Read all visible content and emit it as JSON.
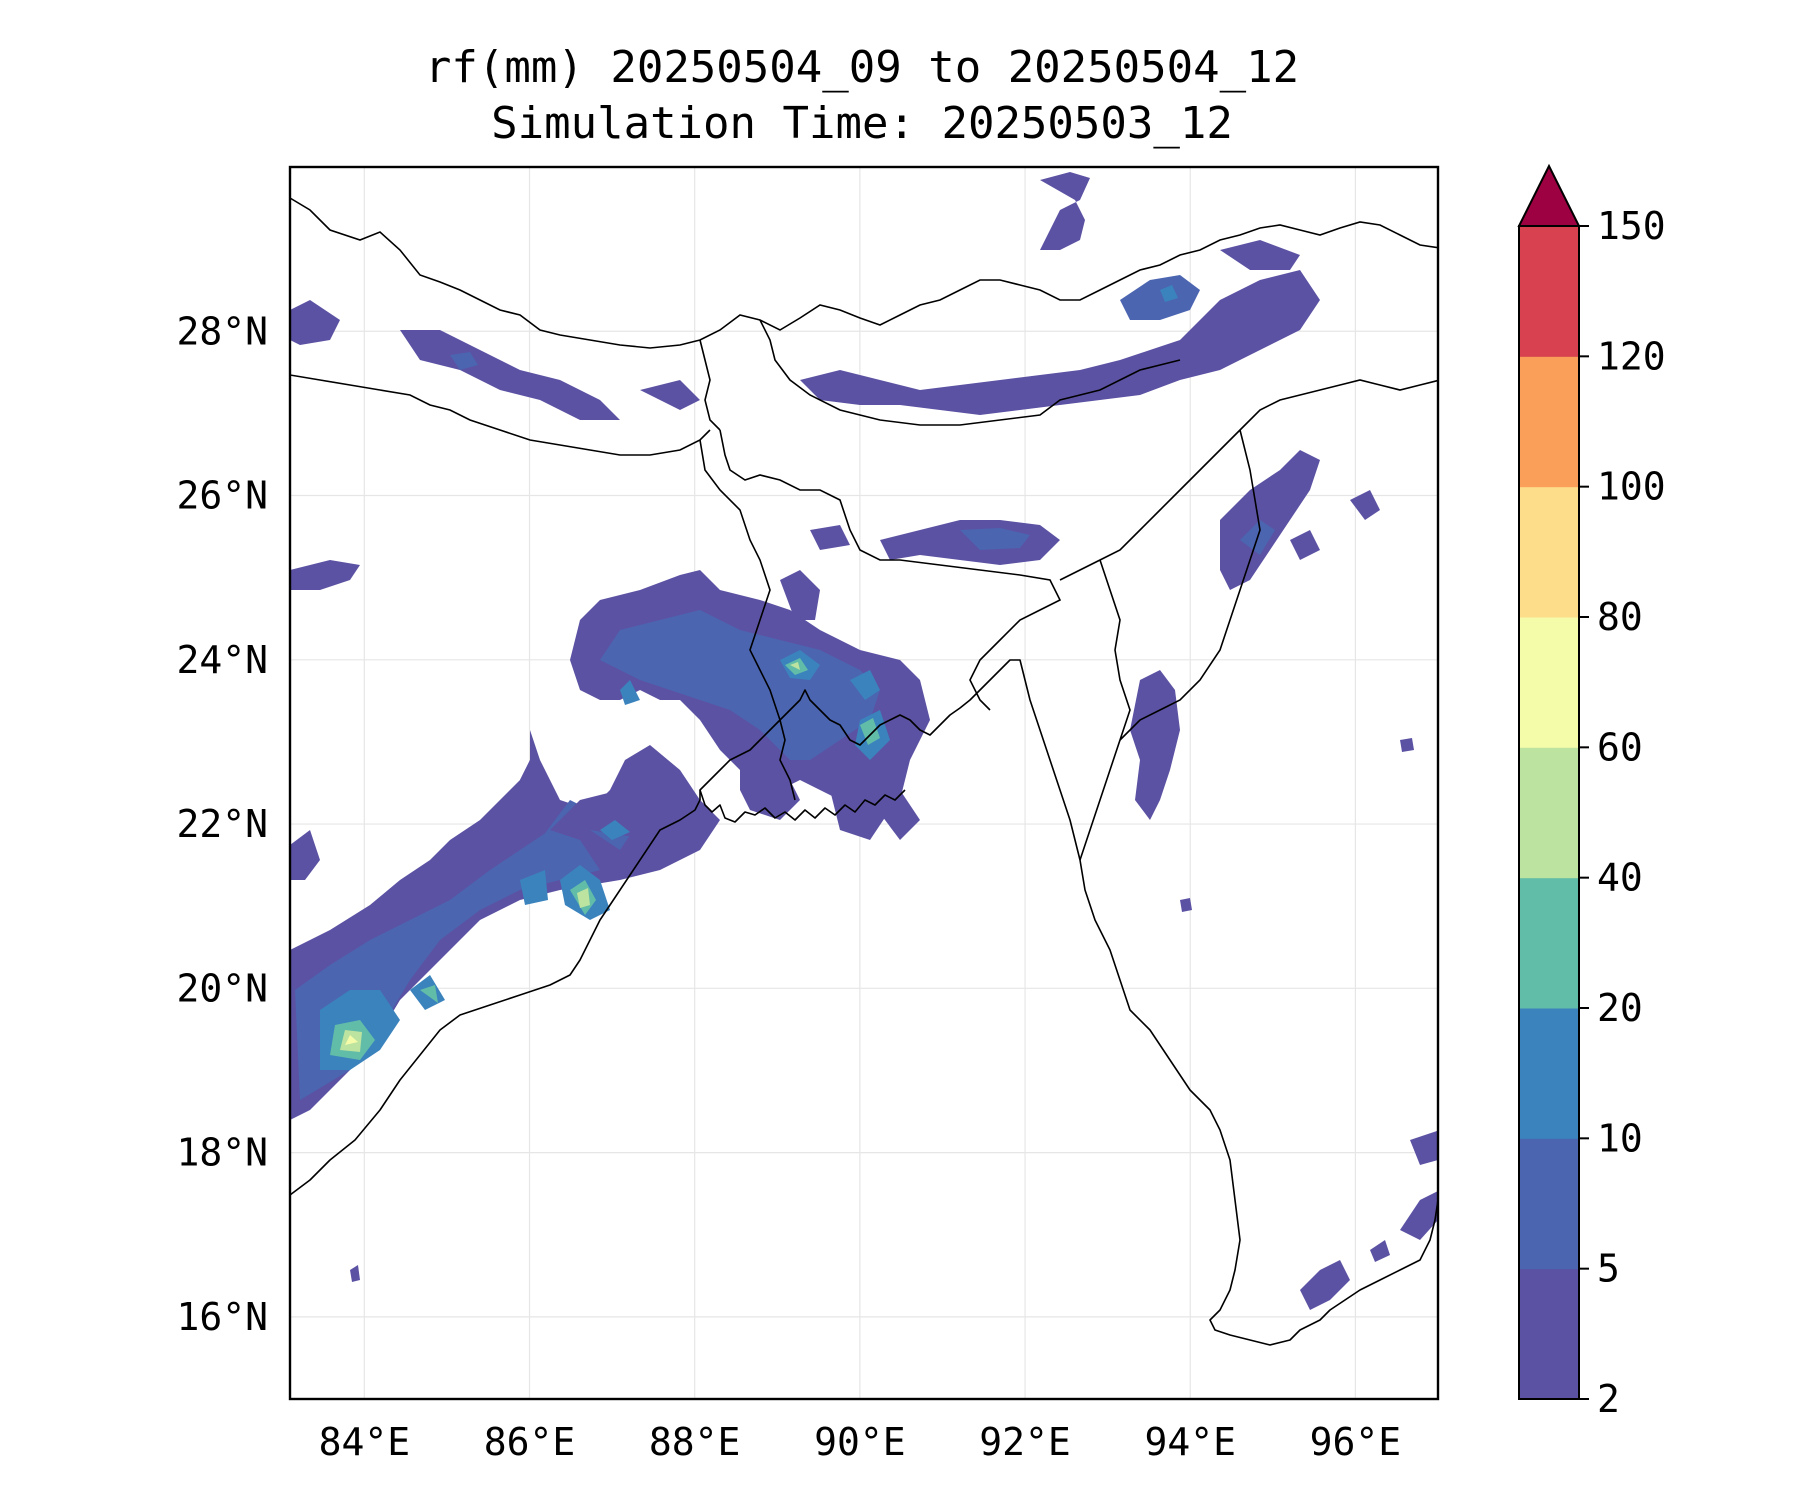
{
  "title": {
    "line1": "rf(mm) 20250504_09 to 20250504_12",
    "line2": "Simulation Time: 20250503_12"
  },
  "map": {
    "lon_range": [
      83.1,
      97.0
    ],
    "lat_range": [
      15.0,
      30.0
    ],
    "lon_ticks": [
      84,
      86,
      88,
      90,
      92,
      94,
      96
    ],
    "lat_ticks": [
      16,
      18,
      20,
      22,
      24,
      26,
      28
    ],
    "lon_tick_labels": [
      "84°E",
      "86°E",
      "88°E",
      "90°E",
      "92°E",
      "94°E",
      "96°E"
    ],
    "lat_tick_labels": [
      "16°N",
      "18°N",
      "20°N",
      "22°N",
      "24°N",
      "26°N",
      "28°N"
    ],
    "grid": true
  },
  "colorbar": {
    "levels": [
      "2",
      "5",
      "10",
      "20",
      "40",
      "60",
      "80",
      "100",
      "120",
      "150"
    ],
    "colors": [
      "#5b52a3",
      "#4b65b0",
      "#3b83bd",
      "#62bda8",
      "#bde3a0",
      "#f4fba9",
      "#fddd8a",
      "#f99f5a",
      "#d84250"
    ],
    "extend_color": "#9e0142"
  },
  "rain_colors": {
    "c1": "#5b52a3",
    "c2": "#4b65b0",
    "c3": "#3b83bd",
    "c4": "#62bda8",
    "c5": "#bde3a0",
    "c6": "#f4fba9"
  }
}
